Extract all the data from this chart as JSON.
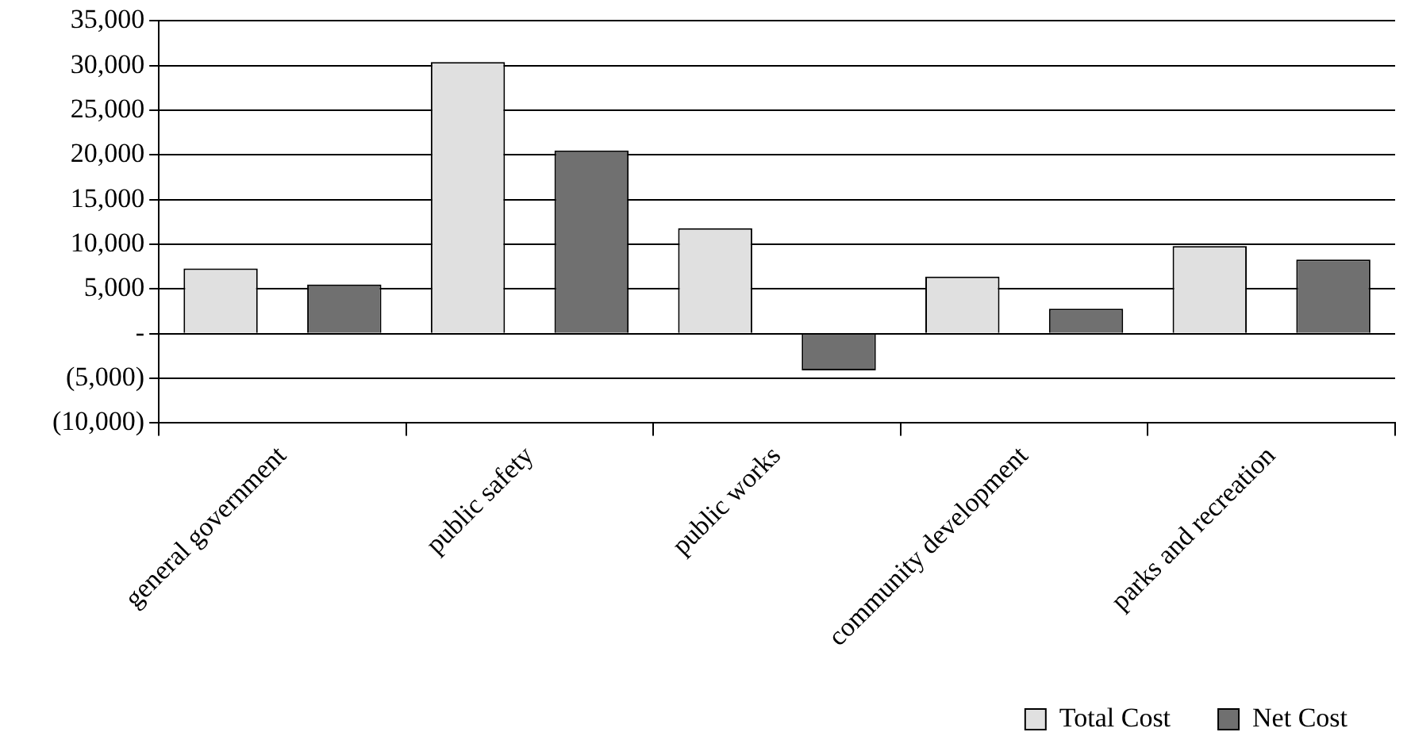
{
  "chart_data": {
    "type": "bar",
    "categories": [
      "general government",
      "public safety",
      "public works",
      "community development",
      "parks and recreation"
    ],
    "series": [
      {
        "name": "Total Cost",
        "color": "#e0e0e0",
        "values": [
          7300,
          30400,
          11800,
          6400,
          9800
        ]
      },
      {
        "name": "Net Cost",
        "color": "#707070",
        "values": [
          5500,
          20500,
          -4100,
          2800,
          8300
        ]
      }
    ],
    "ylim": [
      -10000,
      35000
    ],
    "yticks": [
      {
        "value": -10000,
        "label": "(10,000)"
      },
      {
        "value": -5000,
        "label": "(5,000)"
      },
      {
        "value": 0,
        "label": "-"
      },
      {
        "value": 5000,
        "label": "5,000"
      },
      {
        "value": 10000,
        "label": "10,000"
      },
      {
        "value": 15000,
        "label": "15,000"
      },
      {
        "value": 20000,
        "label": "20,000"
      },
      {
        "value": 25000,
        "label": "25,000"
      },
      {
        "value": 30000,
        "label": "30,000"
      },
      {
        "value": 35000,
        "label": "35,000"
      }
    ],
    "grid": "y",
    "legend": "bottom right"
  }
}
